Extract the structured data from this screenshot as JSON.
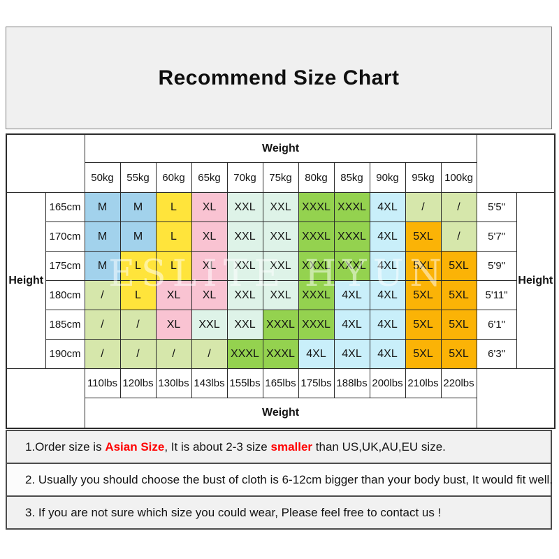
{
  "title": "Recommend Size Chart",
  "watermark": "ESLITE HYUN",
  "colors": {
    "title_panel_bg": "#F0F0F0",
    "note_highlight_red": "#FF0000",
    "table_border": "#2B2B2B"
  },
  "chart_data": {
    "type": "table",
    "title": "Recommend Size Chart",
    "weight_header": "Weight",
    "height_header": "Height",
    "weights_kg": [
      "50kg",
      "55kg",
      "60kg",
      "65kg",
      "70kg",
      "75kg",
      "80kg",
      "85kg",
      "90kg",
      "95kg",
      "100kg"
    ],
    "weights_lbs": [
      "110lbs",
      "120lbs",
      "130lbs",
      "143lbs",
      "155lbs",
      "165lbs",
      "175lbs",
      "188lbs",
      "200lbs",
      "210lbs",
      "220lbs"
    ],
    "heights_cm": [
      "165cm",
      "170cm",
      "175cm",
      "180cm",
      "185cm",
      "190cm"
    ],
    "heights_ft": [
      "5'5\"",
      "5'7\"",
      "5'9\"",
      "5'11\"",
      "6'1\"",
      "6'3\""
    ],
    "sizes": [
      [
        "M",
        "M",
        "L",
        "XL",
        "XXL",
        "XXL",
        "XXXL",
        "XXXL",
        "4XL",
        "/",
        "/"
      ],
      [
        "M",
        "M",
        "L",
        "XL",
        "XXL",
        "XXL",
        "XXXL",
        "XXXL",
        "4XL",
        "5XL",
        "/"
      ],
      [
        "M",
        "L",
        "L",
        "XL",
        "XXL",
        "XXL",
        "XXXL",
        "XXXL",
        "4XL",
        "5XL",
        "5XL"
      ],
      [
        "/",
        "L",
        "XL",
        "XL",
        "XXL",
        "XXL",
        "XXXL",
        "4XL",
        "4XL",
        "5XL",
        "5XL"
      ],
      [
        "/",
        "/",
        "XL",
        "XXL",
        "XXL",
        "XXXL",
        "XXXL",
        "4XL",
        "4XL",
        "5XL",
        "5XL"
      ],
      [
        "/",
        "/",
        "/",
        "/",
        "XXXL",
        "XXXL",
        "4XL",
        "4XL",
        "4XL",
        "5XL",
        "5XL"
      ]
    ],
    "size_colors": {
      "M": "#A2D2EC",
      "L": "#FFE43B",
      "XL": "#F9C3D2",
      "XXL": "#DEF3E8",
      "XXXL": "#94D24F",
      "4XL": "#C9EFFA",
      "5XL": "#FBB306",
      "/": "#D6E7AB"
    }
  },
  "notes": [
    {
      "segments": [
        {
          "text": "1.Order size is ",
          "style": "normal"
        },
        {
          "text": "Asian Size",
          "style": "red"
        },
        {
          "text": ", It is about 2-3 size ",
          "style": "normal"
        },
        {
          "text": "smaller",
          "style": "red"
        },
        {
          "text": " than US,UK,AU,EU size.",
          "style": "normal"
        }
      ]
    },
    {
      "segments": [
        {
          "text": "2. Usually you should choose the bust of cloth is 6-12cm bigger than your body bust, It would fit well.",
          "style": "normal"
        }
      ]
    },
    {
      "segments": [
        {
          "text": "3. If you are not sure which size you could wear, Please feel free to contact us !",
          "style": "normal"
        }
      ]
    }
  ]
}
